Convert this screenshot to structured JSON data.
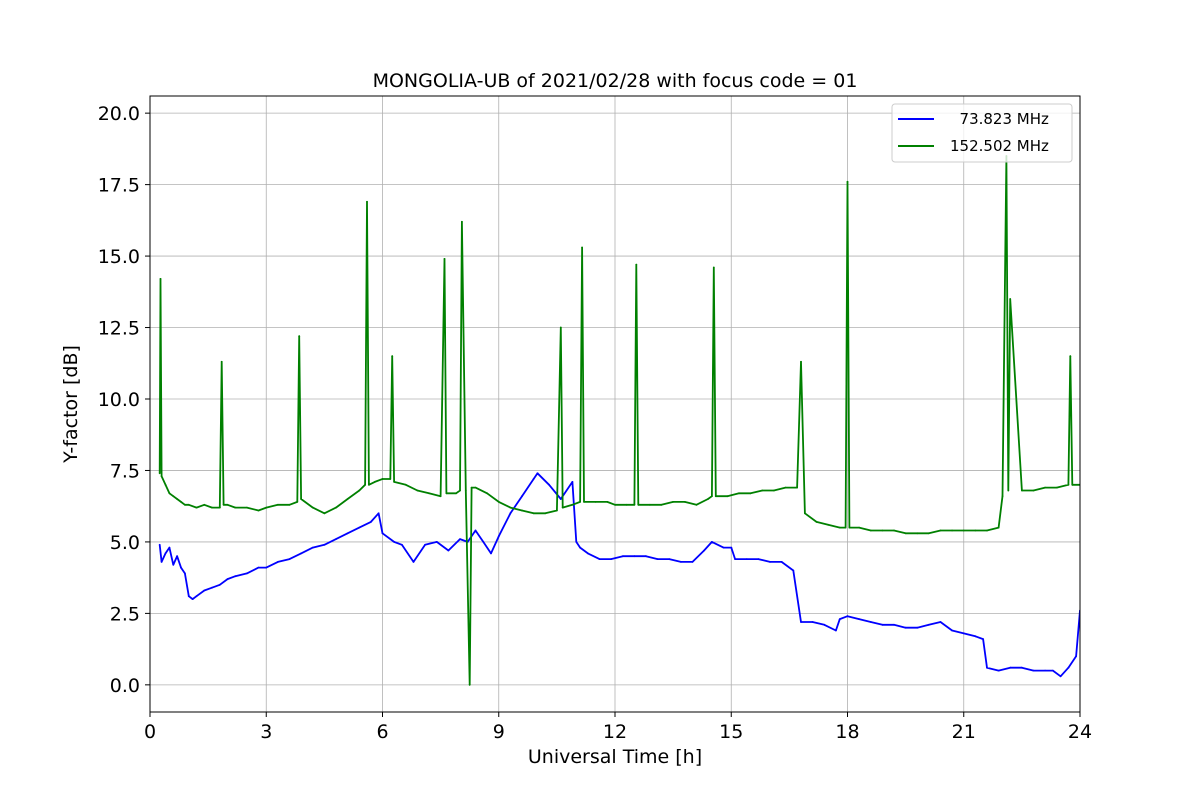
{
  "chart_data": {
    "type": "line",
    "title": "MONGOLIA-UB of 2021/02/28 with focus code = 01",
    "xlabel": "Universal Time [h]",
    "ylabel": "Y-factor [dB]",
    "xlim": [
      0,
      24
    ],
    "ylim": [
      -0.95,
      20.6
    ],
    "xticks": [
      0,
      3,
      6,
      9,
      12,
      15,
      18,
      21,
      24
    ],
    "xtick_labels": [
      "0",
      "3",
      "6",
      "9",
      "12",
      "15",
      "18",
      "21",
      "24"
    ],
    "yticks": [
      0,
      2.5,
      5,
      7.5,
      10,
      12.5,
      15,
      17.5,
      20
    ],
    "ytick_labels": [
      "0.0",
      "2.5",
      "5.0",
      "7.5",
      "10.0",
      "12.5",
      "15.0",
      "17.5",
      "20.0"
    ],
    "grid": true,
    "legend_position": "top-right",
    "series": [
      {
        "name": "  73.823 MHz",
        "color": "#0000ff",
        "x": [
          0.25,
          0.3,
          0.4,
          0.5,
          0.6,
          0.7,
          0.8,
          0.9,
          1.0,
          1.1,
          1.2,
          1.4,
          1.6,
          1.8,
          2.0,
          2.2,
          2.5,
          2.8,
          3.0,
          3.3,
          3.6,
          3.9,
          4.2,
          4.5,
          4.8,
          5.1,
          5.4,
          5.7,
          5.9,
          6.0,
          6.3,
          6.5,
          6.8,
          7.1,
          7.4,
          7.7,
          8.0,
          8.2,
          8.4,
          8.6,
          8.8,
          9.0,
          9.3,
          9.6,
          9.9,
          10.0,
          10.3,
          10.6,
          10.9,
          11.0,
          11.1,
          11.3,
          11.6,
          11.9,
          12.2,
          12.5,
          12.8,
          13.1,
          13.4,
          13.7,
          14.0,
          14.3,
          14.5,
          14.8,
          15.0,
          15.1,
          15.4,
          15.7,
          16.0,
          16.3,
          16.6,
          16.8,
          17.1,
          17.4,
          17.7,
          17.8,
          18.0,
          18.3,
          18.6,
          18.9,
          19.2,
          19.5,
          19.8,
          20.1,
          20.4,
          20.7,
          21.0,
          21.3,
          21.5,
          21.6,
          21.9,
          22.2,
          22.5,
          22.8,
          23.1,
          23.3,
          23.5,
          23.7,
          23.9,
          24.0
        ],
        "y": [
          4.9,
          4.3,
          4.6,
          4.8,
          4.2,
          4.5,
          4.1,
          3.9,
          3.1,
          3.0,
          3.1,
          3.3,
          3.4,
          3.5,
          3.7,
          3.8,
          3.9,
          4.1,
          4.1,
          4.3,
          4.4,
          4.6,
          4.8,
          4.9,
          5.1,
          5.3,
          5.5,
          5.7,
          6.0,
          5.3,
          5.0,
          4.9,
          4.3,
          4.9,
          5.0,
          4.7,
          5.1,
          5.0,
          5.4,
          5.0,
          4.6,
          5.2,
          6.0,
          6.6,
          7.2,
          7.4,
          7.0,
          6.5,
          7.1,
          5.0,
          4.8,
          4.6,
          4.4,
          4.4,
          4.5,
          4.5,
          4.5,
          4.4,
          4.4,
          4.3,
          4.3,
          4.7,
          5.0,
          4.8,
          4.8,
          4.4,
          4.4,
          4.4,
          4.3,
          4.3,
          4.0,
          2.2,
          2.2,
          2.1,
          1.9,
          2.3,
          2.4,
          2.3,
          2.2,
          2.1,
          2.1,
          2.0,
          2.0,
          2.1,
          2.2,
          1.9,
          1.8,
          1.7,
          1.6,
          0.6,
          0.5,
          0.6,
          0.6,
          0.5,
          0.5,
          0.5,
          0.3,
          0.6,
          1.0,
          2.6
        ]
      },
      {
        "name": "152.502 MHz",
        "color": "#008000",
        "x": [
          0.25,
          0.27,
          0.3,
          0.4,
          0.5,
          0.6,
          0.7,
          0.8,
          0.9,
          1.0,
          1.2,
          1.4,
          1.6,
          1.8,
          1.85,
          1.9,
          2.0,
          2.2,
          2.5,
          2.8,
          3.0,
          3.3,
          3.6,
          3.8,
          3.85,
          3.9,
          4.2,
          4.5,
          4.8,
          5.1,
          5.4,
          5.55,
          5.6,
          5.65,
          5.8,
          6.0,
          6.2,
          6.25,
          6.3,
          6.6,
          6.9,
          7.2,
          7.5,
          7.6,
          7.65,
          7.9,
          8.0,
          8.05,
          8.15,
          8.25,
          8.3,
          8.4,
          8.7,
          9.0,
          9.3,
          9.6,
          9.9,
          10.2,
          10.5,
          10.6,
          10.65,
          10.9,
          11.1,
          11.15,
          11.2,
          11.5,
          11.8,
          12.0,
          12.3,
          12.5,
          12.55,
          12.6,
          12.9,
          13.2,
          13.5,
          13.8,
          14.1,
          14.4,
          14.5,
          14.55,
          14.6,
          14.9,
          15.2,
          15.5,
          15.8,
          16.1,
          16.4,
          16.7,
          16.8,
          16.9,
          17.2,
          17.5,
          17.8,
          17.95,
          18.0,
          18.05,
          18.3,
          18.6,
          18.9,
          19.2,
          19.5,
          19.8,
          20.1,
          20.4,
          20.7,
          21.0,
          21.3,
          21.6,
          21.9,
          22.0,
          22.1,
          22.15,
          22.2,
          22.5,
          22.8,
          23.1,
          23.4,
          23.7,
          23.75,
          23.8,
          24.0
        ],
        "y": [
          7.4,
          14.2,
          7.3,
          7.0,
          6.7,
          6.6,
          6.5,
          6.4,
          6.3,
          6.3,
          6.2,
          6.3,
          6.2,
          6.2,
          11.3,
          6.3,
          6.3,
          6.2,
          6.2,
          6.1,
          6.2,
          6.3,
          6.3,
          6.4,
          12.2,
          6.5,
          6.2,
          6.0,
          6.2,
          6.5,
          6.8,
          7.0,
          16.9,
          7.0,
          7.1,
          7.2,
          7.2,
          11.5,
          7.1,
          7.0,
          6.8,
          6.7,
          6.6,
          14.9,
          6.7,
          6.7,
          6.8,
          16.2,
          6.8,
          0.0,
          6.9,
          6.9,
          6.7,
          6.4,
          6.2,
          6.1,
          6.0,
          6.0,
          6.1,
          12.5,
          6.2,
          6.3,
          6.4,
          15.3,
          6.4,
          6.4,
          6.4,
          6.3,
          6.3,
          6.3,
          14.7,
          6.3,
          6.3,
          6.3,
          6.4,
          6.4,
          6.3,
          6.5,
          6.6,
          14.6,
          6.6,
          6.6,
          6.7,
          6.7,
          6.8,
          6.8,
          6.9,
          6.9,
          11.3,
          6.0,
          5.7,
          5.6,
          5.5,
          5.5,
          17.6,
          5.5,
          5.5,
          5.4,
          5.4,
          5.4,
          5.3,
          5.3,
          5.3,
          5.4,
          5.4,
          5.4,
          5.4,
          5.4,
          5.5,
          6.6,
          18.5,
          6.8,
          13.5,
          6.8,
          6.8,
          6.9,
          6.9,
          7.0,
          11.5,
          7.0,
          7.0
        ]
      }
    ]
  }
}
